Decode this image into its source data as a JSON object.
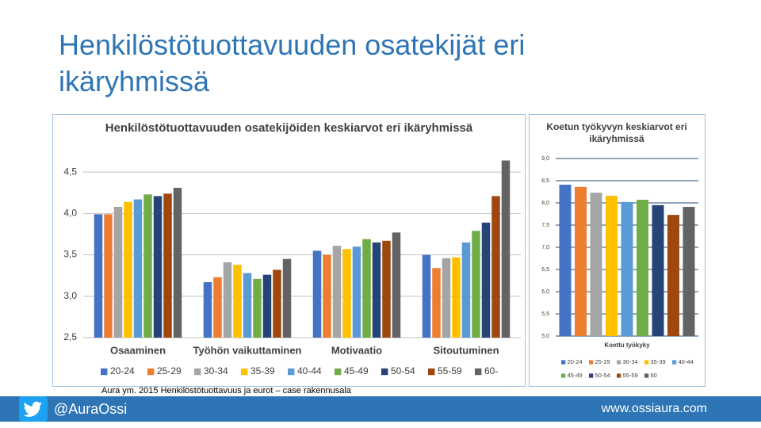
{
  "title": "Henkilöstötuottavuuden osatekijät eri ikäryhmissä",
  "source": "Aura ym. 2015 Henkilöstötuottavuus ja eurot – case rakennusala",
  "footer": {
    "handle": "@AuraOssi",
    "url": "www.ossiaura.com"
  },
  "chart_data": [
    {
      "type": "bar",
      "title": "Henkilöstötuottavuuden osatekijöiden keskiarvot eri ikäryhmissä",
      "categories": [
        "Osaaminen",
        "Työhön vaikuttaminen",
        "Motivaatio",
        "Sitoutuminen"
      ],
      "series": [
        {
          "name": "20-24",
          "color": "#4472c4",
          "values": [
            3.99,
            3.17,
            3.55,
            3.5
          ]
        },
        {
          "name": "25-29",
          "color": "#ed7d31",
          "values": [
            3.99,
            3.23,
            3.5,
            3.34
          ]
        },
        {
          "name": "30-34",
          "color": "#a5a5a5",
          "values": [
            4.08,
            3.41,
            3.61,
            3.46
          ]
        },
        {
          "name": "35-39",
          "color": "#ffc000",
          "values": [
            4.14,
            3.38,
            3.57,
            3.47
          ]
        },
        {
          "name": "40-44",
          "color": "#5b9bd5",
          "values": [
            4.17,
            3.28,
            3.6,
            3.65
          ]
        },
        {
          "name": "45-49",
          "color": "#70ad47",
          "values": [
            4.23,
            3.21,
            3.69,
            3.79
          ]
        },
        {
          "name": "50-54",
          "color": "#264478",
          "values": [
            4.21,
            3.26,
            3.65,
            3.89
          ]
        },
        {
          "name": "55-59",
          "color": "#9e480e",
          "values": [
            4.24,
            3.32,
            3.67,
            4.21
          ]
        },
        {
          "name": "60-",
          "color": "#636363",
          "values": [
            4.31,
            3.45,
            3.77,
            4.64
          ]
        }
      ],
      "ylim": [
        2.5,
        4.75
      ],
      "yticks": [
        {
          "value": 2.5,
          "label": "2,5"
        },
        {
          "value": 3.0,
          "label": "3,0"
        },
        {
          "value": 3.5,
          "label": "3,5"
        },
        {
          "value": 4.0,
          "label": "4,0"
        },
        {
          "value": 4.5,
          "label": "4,5"
        }
      ],
      "grid": true
    },
    {
      "type": "bar",
      "title": "Koetun työkyvyn keskiarvot eri ikäryhmissä",
      "categories": [
        "Koettu työkyky"
      ],
      "series": [
        {
          "name": "20-24",
          "color": "#4472c4",
          "values": [
            8.41
          ]
        },
        {
          "name": "25-29",
          "color": "#ed7d31",
          "values": [
            8.36
          ]
        },
        {
          "name": "30-34",
          "color": "#a5a5a5",
          "values": [
            8.23
          ]
        },
        {
          "name": "35-39",
          "color": "#ffc000",
          "values": [
            8.16
          ]
        },
        {
          "name": "40-44",
          "color": "#5b9bd5",
          "values": [
            8.02
          ]
        },
        {
          "name": "45-49",
          "color": "#70ad47",
          "values": [
            8.07
          ]
        },
        {
          "name": "50-54",
          "color": "#264478",
          "values": [
            7.95
          ]
        },
        {
          "name": "55-59",
          "color": "#9e480e",
          "values": [
            7.73
          ]
        },
        {
          "name": "60",
          "color": "#636363",
          "values": [
            7.91
          ]
        }
      ],
      "ylim": [
        5.0,
        9.0
      ],
      "yticks": [
        {
          "value": 5.0,
          "label": "5,0"
        },
        {
          "value": 5.5,
          "label": "5,5"
        },
        {
          "value": 6.0,
          "label": "6,0"
        },
        {
          "value": 6.5,
          "label": "6,5"
        },
        {
          "value": 7.0,
          "label": "7,0"
        },
        {
          "value": 7.5,
          "label": "7,5"
        },
        {
          "value": 8.0,
          "label": "8,0"
        },
        {
          "value": 8.5,
          "label": "8,5"
        },
        {
          "value": 9.0,
          "label": "9,0"
        }
      ],
      "grid": true
    }
  ]
}
